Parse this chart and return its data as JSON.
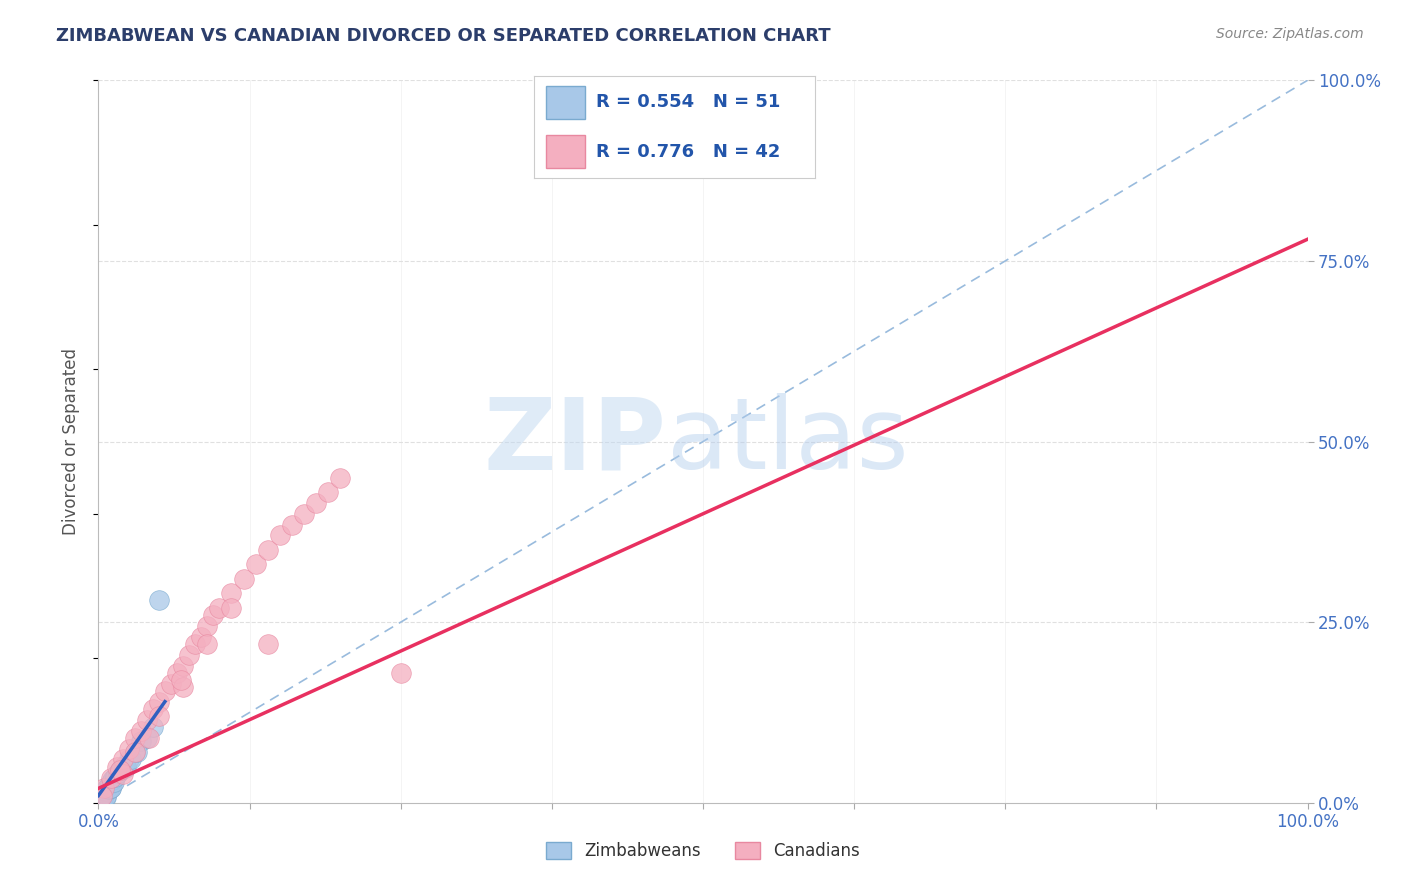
{
  "title": "ZIMBABWEAN VS CANADIAN DIVORCED OR SEPARATED CORRELATION CHART",
  "source_text": "Source: ZipAtlas.com",
  "ylabel": "Divorced or Separated",
  "xlim": [
    0,
    100
  ],
  "ylim": [
    0,
    100
  ],
  "yticks_right": [
    0,
    25,
    50,
    75,
    100
  ],
  "ytick_labels_right": [
    "0.0%",
    "25.0%",
    "50.0%",
    "75.0%",
    "100.0%"
  ],
  "zimbabwean_color": "#a8c8e8",
  "zimbabwean_edge": "#7aaacf",
  "canadian_color": "#f4afc0",
  "canadian_edge": "#e888a0",
  "zimbabwean_R": 0.554,
  "zimbabwean_N": 51,
  "canadian_R": 0.776,
  "canadian_N": 42,
  "background_color": "#ffffff",
  "grid_color": "#e0e0e0",
  "grid_style": "--",
  "title_color": "#2c3e6b",
  "source_color": "#888888",
  "zim_line_color": "#3060c0",
  "can_line_color": "#e83060",
  "ref_line_color": "#99bbdd",
  "legend_color": "#2255aa",
  "zimbabwean_scatter": [
    [
      0.1,
      0.2
    ],
    [
      0.15,
      0.5
    ],
    [
      0.2,
      0.3
    ],
    [
      0.25,
      0.8
    ],
    [
      0.3,
      1.0
    ],
    [
      0.35,
      0.6
    ],
    [
      0.4,
      1.2
    ],
    [
      0.5,
      1.5
    ],
    [
      0.6,
      0.8
    ],
    [
      0.7,
      2.0
    ],
    [
      0.8,
      1.8
    ],
    [
      0.9,
      2.5
    ],
    [
      1.0,
      2.0
    ],
    [
      1.1,
      3.0
    ],
    [
      1.2,
      2.8
    ],
    [
      1.3,
      3.5
    ],
    [
      1.5,
      4.0
    ],
    [
      1.8,
      4.5
    ],
    [
      2.0,
      5.0
    ],
    [
      2.2,
      4.8
    ],
    [
      2.5,
      6.0
    ],
    [
      3.0,
      7.0
    ],
    [
      3.5,
      8.5
    ],
    [
      4.0,
      9.0
    ],
    [
      4.5,
      10.5
    ],
    [
      0.05,
      0.1
    ],
    [
      0.08,
      0.15
    ],
    [
      0.12,
      0.25
    ],
    [
      0.18,
      0.4
    ],
    [
      0.22,
      0.6
    ],
    [
      0.28,
      0.9
    ],
    [
      0.32,
      1.1
    ],
    [
      0.38,
      0.7
    ],
    [
      0.42,
      1.3
    ],
    [
      0.48,
      1.4
    ],
    [
      0.55,
      1.6
    ],
    [
      0.65,
      0.9
    ],
    [
      0.75,
      2.1
    ],
    [
      0.85,
      1.9
    ],
    [
      0.95,
      2.6
    ],
    [
      1.05,
      2.1
    ],
    [
      1.15,
      3.1
    ],
    [
      1.25,
      2.9
    ],
    [
      1.35,
      3.6
    ],
    [
      1.6,
      4.1
    ],
    [
      1.9,
      4.6
    ],
    [
      2.1,
      5.1
    ],
    [
      2.3,
      4.9
    ],
    [
      2.7,
      6.1
    ],
    [
      3.2,
      7.1
    ],
    [
      5.0,
      28.0
    ]
  ],
  "canadian_scatter": [
    [
      0.5,
      2.0
    ],
    [
      1.0,
      3.5
    ],
    [
      1.5,
      5.0
    ],
    [
      2.0,
      6.0
    ],
    [
      2.5,
      7.5
    ],
    [
      3.0,
      9.0
    ],
    [
      3.5,
      10.0
    ],
    [
      4.0,
      11.5
    ],
    [
      4.5,
      13.0
    ],
    [
      5.0,
      14.0
    ],
    [
      5.5,
      15.5
    ],
    [
      6.0,
      16.5
    ],
    [
      6.5,
      18.0
    ],
    [
      7.0,
      19.0
    ],
    [
      7.5,
      20.5
    ],
    [
      8.0,
      22.0
    ],
    [
      8.5,
      23.0
    ],
    [
      9.0,
      24.5
    ],
    [
      9.5,
      26.0
    ],
    [
      10.0,
      27.0
    ],
    [
      11.0,
      29.0
    ],
    [
      12.0,
      31.0
    ],
    [
      13.0,
      33.0
    ],
    [
      14.0,
      35.0
    ],
    [
      15.0,
      37.0
    ],
    [
      16.0,
      38.5
    ],
    [
      17.0,
      40.0
    ],
    [
      18.0,
      41.5
    ],
    [
      19.0,
      43.0
    ],
    [
      20.0,
      45.0
    ],
    [
      2.0,
      4.0
    ],
    [
      3.0,
      7.0
    ],
    [
      5.0,
      12.0
    ],
    [
      7.0,
      16.0
    ],
    [
      9.0,
      22.0
    ],
    [
      11.0,
      27.0
    ],
    [
      0.3,
      1.0
    ],
    [
      1.8,
      4.5
    ],
    [
      4.2,
      9.0
    ],
    [
      6.8,
      17.0
    ],
    [
      14.0,
      22.0
    ],
    [
      25.0,
      18.0
    ]
  ],
  "zim_line_x": [
    0.0,
    5.5
  ],
  "zim_line_y": [
    1.0,
    14.0
  ],
  "can_line_x": [
    0,
    100
  ],
  "can_line_y": [
    2.0,
    78.0
  ]
}
